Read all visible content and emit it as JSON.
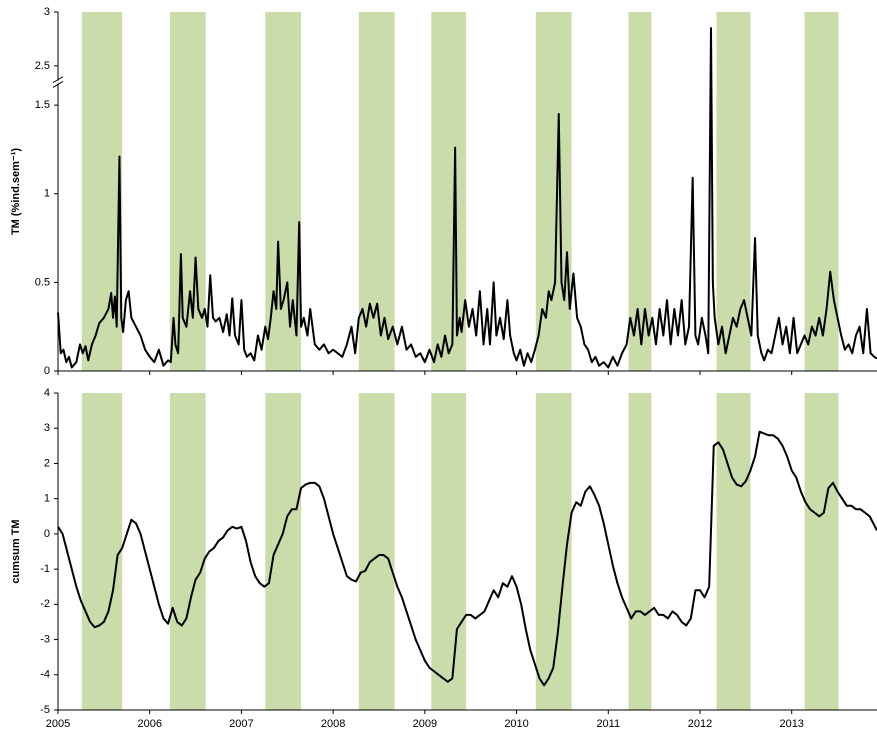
{
  "shaded_periods": {
    "color": "#c9dcaa",
    "ranges": [
      [
        2005.26,
        2005.7
      ],
      [
        2006.22,
        2006.61
      ],
      [
        2007.26,
        2007.65
      ],
      [
        2008.28,
        2008.67
      ],
      [
        2009.07,
        2009.45
      ],
      [
        2010.21,
        2010.6
      ],
      [
        2011.22,
        2011.47
      ],
      [
        2012.18,
        2012.55
      ],
      [
        2013.14,
        2013.51
      ]
    ]
  },
  "chart_data": [
    {
      "type": "line",
      "ylabel": "TM (%ind.sem⁻¹)",
      "color": "#000000",
      "xlim": [
        2005,
        2013.93
      ],
      "xticks": [
        2005,
        2006,
        2007,
        2008,
        2009,
        2010,
        2011,
        2012,
        2013
      ],
      "show_xtick_labels": false,
      "ylim": [
        0,
        3
      ],
      "axis_break": [
        1.6,
        2.4
      ],
      "yticks": [
        0,
        0.5,
        1,
        1.5,
        2.5,
        3
      ],
      "x": [
        2005.0,
        2005.03,
        2005.06,
        2005.09,
        2005.12,
        2005.15,
        2005.2,
        2005.24,
        2005.27,
        2005.3,
        2005.33,
        2005.37,
        2005.41,
        2005.45,
        2005.5,
        2005.55,
        2005.58,
        2005.6,
        2005.62,
        2005.64,
        2005.67,
        2005.69,
        2005.71,
        2005.74,
        2005.77,
        2005.8,
        2005.85,
        2005.9,
        2005.95,
        2006.0,
        2006.05,
        2006.1,
        2006.15,
        2006.2,
        2006.23,
        2006.26,
        2006.28,
        2006.31,
        2006.34,
        2006.36,
        2006.4,
        2006.44,
        2006.47,
        2006.5,
        2006.53,
        2006.57,
        2006.6,
        2006.63,
        2006.66,
        2006.69,
        2006.72,
        2006.76,
        2006.8,
        2006.84,
        2006.87,
        2006.9,
        2006.93,
        2006.97,
        2007.0,
        2007.03,
        2007.06,
        2007.1,
        2007.14,
        2007.18,
        2007.22,
        2007.26,
        2007.29,
        2007.32,
        2007.35,
        2007.38,
        2007.4,
        2007.43,
        2007.46,
        2007.5,
        2007.53,
        2007.56,
        2007.6,
        2007.63,
        2007.65,
        2007.68,
        2007.72,
        2007.75,
        2007.8,
        2007.85,
        2007.9,
        2007.95,
        2008.0,
        2008.05,
        2008.1,
        2008.15,
        2008.2,
        2008.24,
        2008.28,
        2008.32,
        2008.36,
        2008.4,
        2008.44,
        2008.48,
        2008.52,
        2008.56,
        2008.6,
        2008.65,
        2008.7,
        2008.75,
        2008.8,
        2008.85,
        2008.9,
        2008.95,
        2009.0,
        2009.05,
        2009.1,
        2009.14,
        2009.18,
        2009.22,
        2009.26,
        2009.3,
        2009.33,
        2009.35,
        2009.38,
        2009.4,
        2009.44,
        2009.48,
        2009.52,
        2009.56,
        2009.6,
        2009.64,
        2009.68,
        2009.71,
        2009.75,
        2009.78,
        2009.82,
        2009.86,
        2009.9,
        2009.93,
        2009.97,
        2010.0,
        2010.04,
        2010.08,
        2010.12,
        2010.16,
        2010.2,
        2010.24,
        2010.28,
        2010.32,
        2010.35,
        2010.38,
        2010.42,
        2010.46,
        2010.49,
        2010.52,
        2010.55,
        2010.58,
        2010.62,
        2010.66,
        2010.7,
        2010.74,
        2010.78,
        2010.82,
        2010.86,
        2010.9,
        2010.95,
        2011.0,
        2011.05,
        2011.1,
        2011.15,
        2011.2,
        2011.24,
        2011.28,
        2011.32,
        2011.36,
        2011.4,
        2011.44,
        2011.48,
        2011.52,
        2011.56,
        2011.6,
        2011.64,
        2011.68,
        2011.72,
        2011.76,
        2011.8,
        2011.84,
        2011.88,
        2011.92,
        2011.95,
        2011.98,
        2012.02,
        2012.06,
        2012.09,
        2012.12,
        2012.14,
        2012.16,
        2012.2,
        2012.24,
        2012.28,
        2012.32,
        2012.36,
        2012.4,
        2012.44,
        2012.48,
        2012.52,
        2012.56,
        2012.6,
        2012.63,
        2012.67,
        2012.7,
        2012.74,
        2012.78,
        2012.82,
        2012.86,
        2012.9,
        2012.94,
        2012.98,
        2013.02,
        2013.06,
        2013.1,
        2013.14,
        2013.18,
        2013.22,
        2013.26,
        2013.3,
        2013.34,
        2013.38,
        2013.42,
        2013.46,
        2013.5,
        2013.54,
        2013.58,
        2013.62,
        2013.66,
        2013.7,
        2013.74,
        2013.78,
        2013.82,
        2013.86,
        2013.9,
        2013.93
      ],
      "values": [
        0.33,
        0.1,
        0.12,
        0.05,
        0.08,
        0.02,
        0.05,
        0.15,
        0.1,
        0.14,
        0.06,
        0.15,
        0.2,
        0.27,
        0.3,
        0.35,
        0.44,
        0.3,
        0.42,
        0.25,
        1.21,
        0.3,
        0.22,
        0.4,
        0.45,
        0.3,
        0.25,
        0.2,
        0.12,
        0.08,
        0.05,
        0.12,
        0.03,
        0.06,
        0.05,
        0.3,
        0.15,
        0.1,
        0.66,
        0.3,
        0.25,
        0.45,
        0.3,
        0.64,
        0.35,
        0.3,
        0.35,
        0.25,
        0.54,
        0.3,
        0.28,
        0.3,
        0.22,
        0.32,
        0.2,
        0.41,
        0.2,
        0.15,
        0.4,
        0.12,
        0.08,
        0.1,
        0.06,
        0.2,
        0.12,
        0.25,
        0.18,
        0.3,
        0.45,
        0.35,
        0.73,
        0.35,
        0.4,
        0.5,
        0.25,
        0.4,
        0.2,
        0.84,
        0.25,
        0.3,
        0.2,
        0.35,
        0.15,
        0.12,
        0.15,
        0.1,
        0.12,
        0.1,
        0.08,
        0.15,
        0.25,
        0.1,
        0.3,
        0.35,
        0.25,
        0.38,
        0.3,
        0.38,
        0.2,
        0.3,
        0.18,
        0.25,
        0.15,
        0.25,
        0.12,
        0.15,
        0.08,
        0.1,
        0.05,
        0.12,
        0.05,
        0.15,
        0.08,
        0.2,
        0.1,
        0.15,
        1.26,
        0.2,
        0.3,
        0.22,
        0.4,
        0.25,
        0.35,
        0.2,
        0.45,
        0.15,
        0.35,
        0.15,
        0.5,
        0.2,
        0.3,
        0.18,
        0.4,
        0.2,
        0.1,
        0.06,
        0.12,
        0.03,
        0.1,
        0.05,
        0.12,
        0.2,
        0.35,
        0.3,
        0.45,
        0.4,
        0.5,
        1.45,
        0.5,
        0.4,
        0.67,
        0.35,
        0.55,
        0.3,
        0.25,
        0.15,
        0.12,
        0.05,
        0.08,
        0.03,
        0.05,
        0.02,
        0.08,
        0.03,
        0.1,
        0.15,
        0.3,
        0.2,
        0.35,
        0.15,
        0.35,
        0.2,
        0.3,
        0.15,
        0.35,
        0.2,
        0.4,
        0.15,
        0.35,
        0.2,
        0.4,
        0.15,
        0.25,
        1.09,
        0.2,
        0.15,
        0.3,
        0.2,
        0.1,
        2.85,
        0.5,
        0.3,
        0.15,
        0.25,
        0.1,
        0.2,
        0.3,
        0.25,
        0.35,
        0.4,
        0.3,
        0.2,
        0.75,
        0.2,
        0.1,
        0.06,
        0.12,
        0.1,
        0.2,
        0.3,
        0.15,
        0.25,
        0.1,
        0.3,
        0.1,
        0.15,
        0.2,
        0.15,
        0.25,
        0.2,
        0.3,
        0.2,
        0.35,
        0.56,
        0.4,
        0.3,
        0.2,
        0.12,
        0.15,
        0.1,
        0.2,
        0.25,
        0.1,
        0.35,
        0.1,
        0.08,
        0.07
      ]
    },
    {
      "type": "line",
      "ylabel": "cumsum TM",
      "color": "#000000",
      "xlim": [
        2005,
        2013.93
      ],
      "xticks": [
        2005,
        2006,
        2007,
        2008,
        2009,
        2010,
        2011,
        2012,
        2013
      ],
      "show_xtick_labels": true,
      "ylim": [
        -5,
        4
      ],
      "yticks": [
        -5,
        -4,
        -3,
        -2,
        -1,
        0,
        1,
        2,
        3,
        4
      ],
      "x": [
        2005.0,
        2005.05,
        2005.1,
        2005.15,
        2005.2,
        2005.25,
        2005.3,
        2005.35,
        2005.4,
        2005.45,
        2005.5,
        2005.55,
        2005.6,
        2005.65,
        2005.7,
        2005.75,
        2005.8,
        2005.85,
        2005.9,
        2005.95,
        2006.0,
        2006.05,
        2006.1,
        2006.15,
        2006.2,
        2006.25,
        2006.3,
        2006.35,
        2006.4,
        2006.45,
        2006.5,
        2006.55,
        2006.6,
        2006.65,
        2006.7,
        2006.75,
        2006.8,
        2006.85,
        2006.9,
        2006.95,
        2007.0,
        2007.05,
        2007.1,
        2007.15,
        2007.2,
        2007.25,
        2007.3,
        2007.35,
        2007.4,
        2007.45,
        2007.5,
        2007.55,
        2007.6,
        2007.65,
        2007.7,
        2007.75,
        2007.8,
        2007.85,
        2007.9,
        2007.95,
        2008.0,
        2008.05,
        2008.1,
        2008.15,
        2008.2,
        2008.25,
        2008.3,
        2008.35,
        2008.4,
        2008.45,
        2008.5,
        2008.55,
        2008.6,
        2008.65,
        2008.7,
        2008.75,
        2008.8,
        2008.85,
        2008.9,
        2008.95,
        2009.0,
        2009.05,
        2009.1,
        2009.15,
        2009.2,
        2009.25,
        2009.3,
        2009.35,
        2009.4,
        2009.45,
        2009.5,
        2009.55,
        2009.6,
        2009.65,
        2009.7,
        2009.75,
        2009.8,
        2009.85,
        2009.9,
        2009.95,
        2010.0,
        2010.05,
        2010.1,
        2010.15,
        2010.2,
        2010.25,
        2010.3,
        2010.35,
        2010.4,
        2010.45,
        2010.5,
        2010.55,
        2010.6,
        2010.65,
        2010.7,
        2010.75,
        2010.8,
        2010.85,
        2010.9,
        2010.95,
        2011.0,
        2011.05,
        2011.1,
        2011.15,
        2011.2,
        2011.25,
        2011.3,
        2011.35,
        2011.4,
        2011.45,
        2011.5,
        2011.55,
        2011.6,
        2011.65,
        2011.7,
        2011.75,
        2011.8,
        2011.85,
        2011.9,
        2011.95,
        2012.0,
        2012.05,
        2012.1,
        2012.15,
        2012.2,
        2012.25,
        2012.3,
        2012.35,
        2012.4,
        2012.45,
        2012.5,
        2012.55,
        2012.6,
        2012.65,
        2012.7,
        2012.75,
        2012.8,
        2012.85,
        2012.9,
        2012.95,
        2013.0,
        2013.05,
        2013.1,
        2013.15,
        2013.2,
        2013.25,
        2013.3,
        2013.35,
        2013.4,
        2013.45,
        2013.5,
        2013.55,
        2013.6,
        2013.65,
        2013.7,
        2013.75,
        2013.8,
        2013.85,
        2013.93
      ],
      "values": [
        0.2,
        0.0,
        -0.5,
        -1.0,
        -1.5,
        -1.9,
        -2.2,
        -2.5,
        -2.65,
        -2.6,
        -2.5,
        -2.2,
        -1.6,
        -0.6,
        -0.4,
        0.0,
        0.4,
        0.3,
        0.0,
        -0.5,
        -1.0,
        -1.5,
        -2.0,
        -2.4,
        -2.55,
        -2.1,
        -2.5,
        -2.6,
        -2.4,
        -1.8,
        -1.3,
        -1.1,
        -0.7,
        -0.5,
        -0.4,
        -0.2,
        -0.1,
        0.1,
        0.2,
        0.15,
        0.2,
        -0.2,
        -0.8,
        -1.2,
        -1.4,
        -1.5,
        -1.4,
        -0.6,
        -0.3,
        0.0,
        0.5,
        0.7,
        0.7,
        1.3,
        1.4,
        1.45,
        1.45,
        1.35,
        1.0,
        0.5,
        0.0,
        -0.4,
        -0.8,
        -1.2,
        -1.3,
        -1.35,
        -1.1,
        -1.05,
        -0.8,
        -0.7,
        -0.6,
        -0.6,
        -0.7,
        -1.1,
        -1.5,
        -1.8,
        -2.2,
        -2.6,
        -3.0,
        -3.3,
        -3.6,
        -3.8,
        -3.9,
        -4.0,
        -4.1,
        -4.2,
        -4.1,
        -2.7,
        -2.5,
        -2.3,
        -2.3,
        -2.4,
        -2.3,
        -2.2,
        -1.9,
        -1.6,
        -1.8,
        -1.4,
        -1.5,
        -1.2,
        -1.5,
        -2.0,
        -2.7,
        -3.3,
        -3.7,
        -4.1,
        -4.3,
        -4.1,
        -3.8,
        -2.8,
        -1.5,
        -0.3,
        0.6,
        0.9,
        0.8,
        1.2,
        1.35,
        1.1,
        0.8,
        0.3,
        -0.3,
        -0.9,
        -1.4,
        -1.8,
        -2.1,
        -2.4,
        -2.2,
        -2.2,
        -2.3,
        -2.2,
        -2.1,
        -2.3,
        -2.3,
        -2.4,
        -2.2,
        -2.3,
        -2.5,
        -2.6,
        -2.4,
        -1.6,
        -1.6,
        -1.8,
        -1.5,
        2.5,
        2.6,
        2.4,
        2.0,
        1.6,
        1.4,
        1.35,
        1.5,
        1.8,
        2.2,
        2.9,
        2.85,
        2.8,
        2.8,
        2.7,
        2.5,
        2.2,
        1.8,
        1.6,
        1.2,
        0.9,
        0.7,
        0.6,
        0.5,
        0.6,
        1.3,
        1.45,
        1.2,
        1.0,
        0.8,
        0.8,
        0.7,
        0.7,
        0.6,
        0.5,
        0.1
      ]
    }
  ]
}
